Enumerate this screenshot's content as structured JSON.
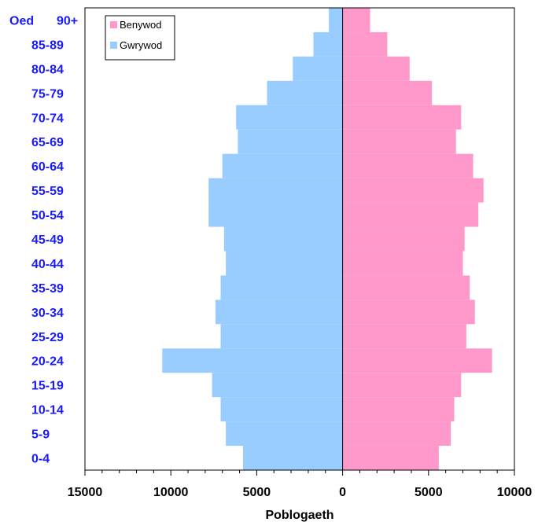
{
  "chart_data": {
    "type": "bar",
    "orientation": "horizontal-population-pyramid",
    "age_axis_prefix": "Oed",
    "categories": [
      "0-4",
      "5-9",
      "10-14",
      "15-19",
      "20-24",
      "25-29",
      "30-34",
      "35-39",
      "40-44",
      "45-49",
      "50-54",
      "55-59",
      "60-64",
      "65-69",
      "70-74",
      "75-79",
      "80-84",
      "85-89",
      "90+"
    ],
    "series": [
      {
        "name": "Benywod",
        "color": "#ff99cc",
        "side": "right",
        "values": [
          5600,
          6300,
          6500,
          6900,
          8700,
          7200,
          7700,
          7400,
          7000,
          7100,
          7900,
          8200,
          7600,
          6600,
          6900,
          5200,
          3900,
          2600,
          1600
        ]
      },
      {
        "name": "Gwrywod",
        "color": "#99ccff",
        "side": "left",
        "values": [
          5800,
          6800,
          7100,
          7600,
          10500,
          7100,
          7400,
          7100,
          6800,
          6900,
          7800,
          7800,
          7000,
          6100,
          6200,
          4400,
          2900,
          1700,
          800
        ]
      }
    ],
    "xlabel": "Poblogaeth",
    "xlim": [
      -15000,
      10000
    ],
    "xticks": [
      -15000,
      -10000,
      -5000,
      0,
      5000,
      10000
    ],
    "xtick_labels": [
      "15000",
      "10000",
      "5000",
      "0",
      "5000",
      "10000"
    ],
    "legend_position": "top-left",
    "grid": false
  }
}
